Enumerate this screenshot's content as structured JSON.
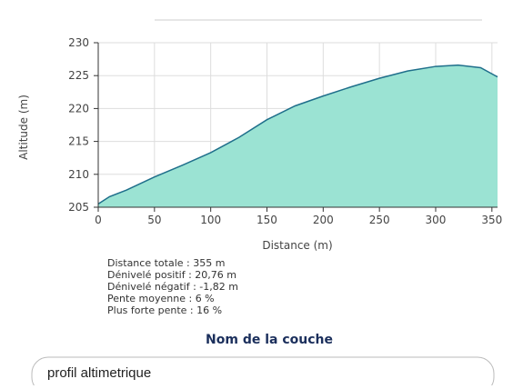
{
  "chart_data": {
    "type": "area",
    "x": [
      0,
      10,
      25,
      50,
      75,
      100,
      125,
      150,
      175,
      200,
      225,
      250,
      275,
      300,
      320,
      340,
      355
    ],
    "values": [
      205.5,
      206.6,
      207.6,
      209.6,
      211.4,
      213.3,
      215.6,
      218.3,
      220.4,
      221.9,
      223.3,
      224.6,
      225.7,
      226.4,
      226.6,
      226.2,
      224.8
    ],
    "color": "#9be3d3",
    "line_color": "#1f6f8b",
    "xlabel": "Distance (m)",
    "ylabel": "Altitude (m)",
    "xlim": [
      0,
      355
    ],
    "ylim": [
      205,
      230
    ],
    "xticks": [
      0,
      50,
      100,
      150,
      200,
      250,
      300,
      350
    ],
    "yticks": [
      205,
      210,
      215,
      220,
      225,
      230
    ],
    "grid": true
  },
  "stats": [
    "Distance totale : 355 m",
    "Dénivelé positif : 20,76 m",
    "Dénivelé négatif : -1,82 m",
    "Pente moyenne : 6 %",
    "Plus forte pente : 16 %"
  ],
  "layer": {
    "label": "Nom de la couche",
    "value": "profil altimetrique"
  }
}
